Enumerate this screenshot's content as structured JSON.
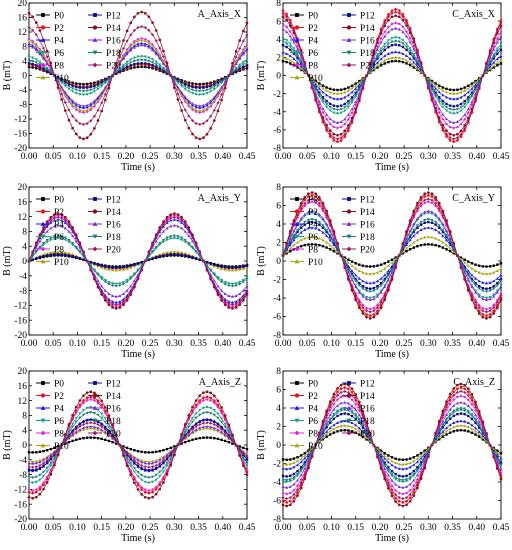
{
  "legend_labels": [
    "P0",
    "P2",
    "P4",
    "P6",
    "P8",
    "P10",
    "P12",
    "P14",
    "P16",
    "P18",
    "P20"
  ],
  "series_colors": {
    "P0": "#000000",
    "P2": "#e8141b",
    "P4": "#1a1ae6",
    "P6": "#16a085",
    "P8": "#e11fd6",
    "P10": "#a7a512",
    "P12": "#0c0c82",
    "P14": "#8a0f1d",
    "P16": "#7a2bd6",
    "P18": "#1e7d73",
    "P20": "#a4135f"
  },
  "chart_data": [
    {
      "type": "scatter",
      "title": "A_Axis_X",
      "xlabel": "Time (s)",
      "ylabel": "B (mT)",
      "xlim": [
        0,
        0.45
      ],
      "ylim": [
        -20,
        20
      ],
      "x_ticks": [
        "0.00",
        "0.05",
        "0.10",
        "0.15",
        "0.20",
        "0.25",
        "0.30",
        "0.35",
        "0.40",
        "0.45"
      ],
      "y_ticks": [
        "-20",
        "-16",
        "-12",
        "-8",
        "-4",
        "0",
        "4",
        "8",
        "12",
        "16",
        "20"
      ],
      "wave": "sine",
      "phase_deg": 101,
      "series": [
        {
          "name": "P0",
          "amplitude": 2.4
        },
        {
          "name": "P2",
          "amplitude": 3.1
        },
        {
          "name": "P4",
          "amplitude": 8.9
        },
        {
          "name": "P6",
          "amplitude": 5.3
        },
        {
          "name": "P8",
          "amplitude": 10.2
        },
        {
          "name": "P10",
          "amplitude": 9.7
        },
        {
          "name": "P12",
          "amplitude": 3.4
        },
        {
          "name": "P14",
          "amplitude": 17.5
        },
        {
          "name": "P16",
          "amplitude": 8.4
        },
        {
          "name": "P18",
          "amplitude": 4.3
        },
        {
          "name": "P20",
          "amplitude": 13.5
        }
      ]
    },
    {
      "type": "scatter",
      "title": "C_Axis_X",
      "xlabel": "Time (s)",
      "ylabel": "B (mT)",
      "xlim": [
        0,
        0.45
      ],
      "ylim": [
        -8,
        8
      ],
      "x_ticks": [
        "0.00",
        "0.05",
        "0.10",
        "0.15",
        "0.20",
        "0.25",
        "0.30",
        "0.35",
        "0.40",
        "0.45"
      ],
      "y_ticks": [
        "-8",
        "-6",
        "-4",
        "-2",
        "0",
        "2",
        "4",
        "6",
        "8"
      ],
      "wave": "sine",
      "phase_deg": 101,
      "series": [
        {
          "name": "P0",
          "amplitude": 1.6
        },
        {
          "name": "P2",
          "amplitude": 7.3
        },
        {
          "name": "P4",
          "amplitude": 2.6
        },
        {
          "name": "P6",
          "amplitude": 4.2
        },
        {
          "name": "P8",
          "amplitude": 5.8
        },
        {
          "name": "P10",
          "amplitude": 2.0
        },
        {
          "name": "P12",
          "amplitude": 3.4
        },
        {
          "name": "P14",
          "amplitude": 6.6
        },
        {
          "name": "P16",
          "amplitude": 5.2
        },
        {
          "name": "P18",
          "amplitude": 3.8
        },
        {
          "name": "P20",
          "amplitude": 7.0
        }
      ]
    },
    {
      "type": "scatter",
      "title": "A_Axis_Y",
      "xlabel": "Time (s)",
      "ylabel": "B (mT)",
      "xlim": [
        0,
        0.45
      ],
      "ylim": [
        -20,
        20
      ],
      "x_ticks": [
        "0.00",
        "0.05",
        "0.10",
        "0.15",
        "0.20",
        "0.25",
        "0.30",
        "0.35",
        "0.40",
        "0.45"
      ],
      "y_ticks": [
        "-20",
        "-16",
        "-12",
        "-8",
        "-4",
        "0",
        "4",
        "8",
        "12",
        "16",
        "20"
      ],
      "wave": "sine",
      "phase_deg": 0,
      "series": [
        {
          "name": "P0",
          "amplitude": 1.5
        },
        {
          "name": "P2",
          "amplitude": 2.0
        },
        {
          "name": "P4",
          "amplitude": 11.2
        },
        {
          "name": "P6",
          "amplitude": 6.2
        },
        {
          "name": "P8",
          "amplitude": 12.3
        },
        {
          "name": "P10",
          "amplitude": 2.5
        },
        {
          "name": "P12",
          "amplitude": 1.8
        },
        {
          "name": "P14",
          "amplitude": 12.8
        },
        {
          "name": "P16",
          "amplitude": 9.6
        },
        {
          "name": "P18",
          "amplitude": 6.8
        },
        {
          "name": "P20",
          "amplitude": 11.8
        }
      ]
    },
    {
      "type": "scatter",
      "title": "C_Axis_Y",
      "xlabel": "Time (s)",
      "ylabel": "B (mT)",
      "xlim": [
        0,
        0.45
      ],
      "ylim": [
        -8,
        8
      ],
      "x_ticks": [
        "0.00",
        "0.05",
        "0.10",
        "0.15",
        "0.20",
        "0.25",
        "0.30",
        "0.35",
        "0.40",
        "0.45"
      ],
      "y_ticks": [
        "-8",
        "-6",
        "-4",
        "-2",
        "0",
        "2",
        "4",
        "6",
        "8"
      ],
      "wave": "sine",
      "phase_deg": 0,
      "offset": 0.6,
      "series": [
        {
          "name": "P0",
          "amplitude": 1.2
        },
        {
          "name": "P2",
          "amplitude": 6.5
        },
        {
          "name": "P4",
          "amplitude": 3.0
        },
        {
          "name": "P6",
          "amplitude": 4.6
        },
        {
          "name": "P8",
          "amplitude": 5.8
        },
        {
          "name": "P10",
          "amplitude": 2.0
        },
        {
          "name": "P12",
          "amplitude": 3.6
        },
        {
          "name": "P14",
          "amplitude": 6.8
        },
        {
          "name": "P16",
          "amplitude": 4.8
        },
        {
          "name": "P18",
          "amplitude": 3.9
        },
        {
          "name": "P20",
          "amplitude": 6.1
        }
      ]
    },
    {
      "type": "scatter",
      "title": "A_Axis_Z",
      "xlabel": "Time (s)",
      "ylabel": "B (mT)",
      "xlim": [
        0,
        0.45
      ],
      "ylim": [
        -20,
        20
      ],
      "x_ticks": [
        "0.00",
        "0.05",
        "0.10",
        "0.15",
        "0.20",
        "0.25",
        "0.30",
        "0.35",
        "0.40",
        "0.45"
      ],
      "y_ticks": [
        "-20",
        "-16",
        "-12",
        "-8",
        "-4",
        "0",
        "4",
        "8",
        "12",
        "16",
        "20"
      ],
      "wave": "sine",
      "phase_deg": -101,
      "series": [
        {
          "name": "P0",
          "amplitude": 2.0
        },
        {
          "name": "P2",
          "amplitude": 13.0
        },
        {
          "name": "P4",
          "amplitude": 7.0
        },
        {
          "name": "P6",
          "amplitude": 10.2
        },
        {
          "name": "P8",
          "amplitude": 12.3
        },
        {
          "name": "P10",
          "amplitude": 4.5
        },
        {
          "name": "P12",
          "amplitude": 6.8
        },
        {
          "name": "P14",
          "amplitude": 14.4
        },
        {
          "name": "P16",
          "amplitude": 5.0
        },
        {
          "name": "P18",
          "amplitude": 8.8
        },
        {
          "name": "P20",
          "amplitude": 6.0
        }
      ]
    },
    {
      "type": "scatter",
      "title": "C_Axis_Z",
      "xlabel": "Time (s)",
      "ylabel": "B (mT)",
      "xlim": [
        0,
        0.45
      ],
      "ylim": [
        -8,
        8
      ],
      "x_ticks": [
        "0.00",
        "0.05",
        "0.10",
        "0.15",
        "0.20",
        "0.25",
        "0.30",
        "0.35",
        "0.40",
        "0.45"
      ],
      "y_ticks": [
        "-8",
        "-6",
        "-4",
        "-2",
        "0",
        "2",
        "4",
        "6",
        "8"
      ],
      "wave": "sine",
      "phase_deg": -101,
      "series": [
        {
          "name": "P0",
          "amplitude": 1.6
        },
        {
          "name": "P2",
          "amplitude": 6.2
        },
        {
          "name": "P4",
          "amplitude": 2.6
        },
        {
          "name": "P6",
          "amplitude": 4.0
        },
        {
          "name": "P8",
          "amplitude": 5.3
        },
        {
          "name": "P10",
          "amplitude": 2.1
        },
        {
          "name": "P12",
          "amplitude": 3.4
        },
        {
          "name": "P14",
          "amplitude": 6.6
        },
        {
          "name": "P16",
          "amplitude": 4.6
        },
        {
          "name": "P18",
          "amplitude": 3.8
        },
        {
          "name": "P20",
          "amplitude": 5.8
        }
      ]
    }
  ]
}
